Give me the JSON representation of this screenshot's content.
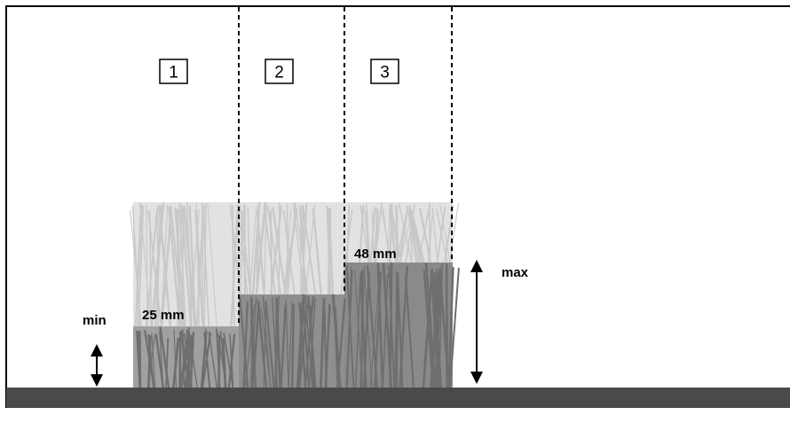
{
  "steps": [
    {
      "number": "1"
    },
    {
      "number": "2"
    },
    {
      "number": "3"
    }
  ],
  "labels": {
    "min_label": "min",
    "max_label": "max",
    "height_min_value": "25 mm",
    "height_max_value": "48 mm"
  },
  "colors": {
    "ground": "#4a4a4a",
    "grass_cut": "#a0a0a0",
    "grass_cut_dark": "#8a8a8a",
    "grass_tall": "#e2e2e2",
    "grass_blade_light": "#c8c8c8",
    "grass_blade_dark": "#6e6e6e",
    "line": "#000000"
  }
}
